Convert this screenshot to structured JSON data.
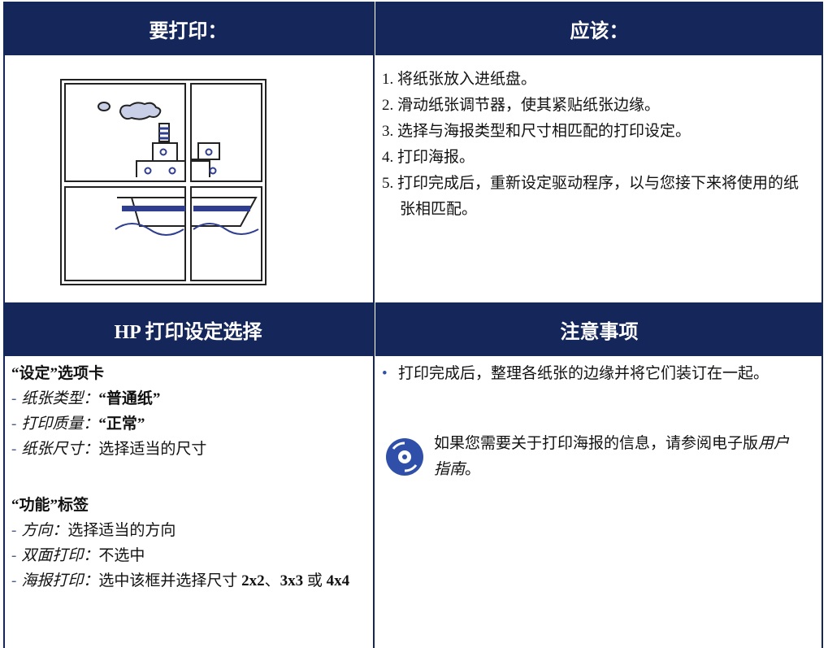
{
  "headers": {
    "top_left": "要打印：",
    "top_right": "应该：",
    "bottom_left": "HP 打印设定选择",
    "bottom_right": "注意事项"
  },
  "steps": [
    "1. 将纸张放入进纸盘。",
    "2. 滑动纸张调节器，使其紧贴纸张边缘。",
    "3. 选择与海报类型和尺寸相匹配的打印设定。",
    "4. 打印海报。",
    "5. 打印完成后，重新设定驱动程序，以与您接下来将使用的纸张相匹配。"
  ],
  "settings": {
    "sections": [
      {
        "title": "“设定”选项卡",
        "items": [
          {
            "bullet": "-",
            "segments": [
              {
                "text": "纸张类型：",
                "style": "italic"
              },
              {
                "text": "“普通纸”",
                "style": "bold"
              }
            ]
          },
          {
            "bullet": "-",
            "segments": [
              {
                "text": "打印质量：",
                "style": "italic"
              },
              {
                "text": "“正常”",
                "style": "bold"
              }
            ]
          },
          {
            "bullet": "-",
            "segments": [
              {
                "text": "纸张尺寸：",
                "style": "italic"
              },
              {
                "text": "选择适当的尺寸",
                "style": "normal"
              }
            ]
          }
        ]
      },
      {
        "title": "“功能”标签",
        "items": [
          {
            "bullet": "-",
            "segments": [
              {
                "text": "方向：",
                "style": "italic"
              },
              {
                "text": "选择适当的方向",
                "style": "normal"
              }
            ]
          },
          {
            "bullet": "-",
            "segments": [
              {
                "text": "双面打印：",
                "style": "italic"
              },
              {
                "text": "不选中",
                "style": "normal"
              }
            ]
          },
          {
            "bullet": "-",
            "segments": [
              {
                "text": "海报打印：",
                "style": "italic"
              },
              {
                "text": "选中该框并选择尺寸 ",
                "style": "normal"
              },
              {
                "text": "2x2",
                "style": "bold"
              },
              {
                "text": "、",
                "style": "normal"
              },
              {
                "text": "3x3",
                "style": "bold"
              },
              {
                "text": " 或 ",
                "style": "normal"
              },
              {
                "text": "4x4",
                "style": "bold"
              }
            ]
          }
        ]
      }
    ]
  },
  "notes": {
    "bullet": {
      "marker": "•",
      "text": "打印完成后，整理各纸张的边缘并将它们装订在一起。"
    },
    "tip": [
      {
        "text": "如果您需要关于打印海报的信息，请参阅电子版",
        "style": "normal"
      },
      {
        "text": "用户指南",
        "style": "italic"
      },
      {
        "text": "。",
        "style": "normal"
      }
    ]
  }
}
